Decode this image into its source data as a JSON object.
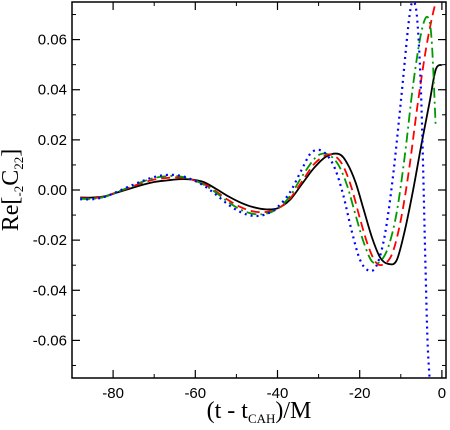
{
  "chart_data": {
    "type": "line",
    "title": "",
    "xlabel": {
      "main": "(t - t",
      "sub": "CAH",
      "tail": ")/M"
    },
    "ylabel": {
      "pre": "Re[",
      "sub": "-2",
      "mid": "C",
      "sub2": "22",
      "tail": "]"
    },
    "xlim": [
      -90,
      1
    ],
    "ylim": [
      -0.075,
      0.075
    ],
    "xticks": [
      -80,
      -60,
      -40,
      -20,
      0
    ],
    "xtick_labels": [
      "-80",
      "-60",
      "-40",
      "-20",
      "0"
    ],
    "yticks": [
      -0.06,
      -0.04,
      -0.02,
      0.0,
      0.02,
      0.04,
      0.06
    ],
    "ytick_labels": [
      "-0.06",
      "-0.04",
      "-0.02",
      "0.00",
      "0.02",
      "0.04",
      "0.06"
    ],
    "grid": false,
    "series": [
      {
        "style": "solid",
        "color": "#000000",
        "x": [
          -88,
          -85,
          -82,
          -79,
          -76,
          -73,
          -70,
          -67,
          -64,
          -61,
          -58,
          -55,
          -52,
          -49,
          -46,
          -43,
          -40,
          -37,
          -34,
          -31,
          -28,
          -25,
          -23,
          -21,
          -19,
          -17,
          -15,
          -13,
          -11,
          -9,
          -7,
          -5,
          -3,
          -1.5,
          0
        ],
        "y": [
          -0.003,
          -0.003,
          -0.0025,
          -0.001,
          0.0005,
          0.002,
          0.0032,
          0.0038,
          0.0043,
          0.0042,
          0.0032,
          0.0005,
          -0.0025,
          -0.005,
          -0.0068,
          -0.0077,
          -0.0073,
          -0.004,
          0.0025,
          0.009,
          0.0135,
          0.0143,
          0.0105,
          0.003,
          -0.008,
          -0.019,
          -0.027,
          -0.0295,
          -0.028,
          -0.016,
          0.0,
          0.018,
          0.035,
          0.048,
          0.05
        ]
      },
      {
        "style": "dash",
        "color": "#ff0000",
        "x": [
          -88,
          -85,
          -82,
          -79,
          -76,
          -73,
          -70,
          -67,
          -64,
          -61,
          -58,
          -55,
          -52,
          -49,
          -46,
          -43,
          -40,
          -37,
          -34,
          -31,
          -28,
          -26,
          -24,
          -22,
          -20,
          -18,
          -16,
          -14,
          -12,
          -10,
          -8,
          -6,
          -4,
          -2.5,
          -1.5
        ],
        "y": [
          -0.0033,
          -0.0033,
          -0.0025,
          -0.0008,
          0.001,
          0.0028,
          0.0042,
          0.0048,
          0.005,
          0.0042,
          0.0025,
          -0.0005,
          -0.004,
          -0.0068,
          -0.0085,
          -0.0088,
          -0.0075,
          -0.0035,
          0.0035,
          0.0105,
          0.014,
          0.0135,
          0.0095,
          0.001,
          -0.011,
          -0.022,
          -0.029,
          -0.0295,
          -0.025,
          -0.012,
          0.008,
          0.033,
          0.055,
          0.068,
          0.075
        ]
      },
      {
        "style": "dashdot",
        "color": "#009900",
        "x": [
          -88,
          -85,
          -82,
          -79,
          -76,
          -73,
          -70,
          -67,
          -64,
          -61,
          -58,
          -55,
          -52,
          -49,
          -46,
          -43,
          -40,
          -37,
          -34,
          -31,
          -29,
          -27,
          -25,
          -23,
          -21,
          -19,
          -17,
          -15,
          -13,
          -11,
          -9,
          -7,
          -5,
          -3.5,
          -2.5,
          -1.5
        ],
        "y": [
          -0.0035,
          -0.0035,
          -0.0027,
          -0.0008,
          0.0012,
          0.0032,
          0.0048,
          0.0055,
          0.0055,
          0.0043,
          0.0022,
          -0.001,
          -0.0048,
          -0.0078,
          -0.0095,
          -0.0095,
          -0.0075,
          -0.0025,
          0.0055,
          0.0125,
          0.0145,
          0.0135,
          0.0095,
          0.0015,
          -0.01,
          -0.021,
          -0.0285,
          -0.0285,
          -0.0225,
          -0.009,
          0.014,
          0.042,
          0.063,
          0.069,
          0.06,
          0.025
        ]
      },
      {
        "style": "dot",
        "color": "#0000ff",
        "x": [
          -88,
          -85,
          -82,
          -79,
          -76,
          -73,
          -70,
          -67,
          -64,
          -61,
          -58,
          -55,
          -52,
          -49,
          -46,
          -43,
          -40,
          -37,
          -34,
          -32,
          -30,
          -28,
          -26,
          -24,
          -22,
          -20,
          -18,
          -16,
          -14,
          -12,
          -10,
          -8,
          -7,
          -6,
          -5,
          -4,
          -3.5,
          -3
        ],
        "y": [
          -0.0037,
          -0.0037,
          -0.0027,
          -0.0007,
          0.0015,
          0.0035,
          0.0052,
          0.006,
          0.0058,
          0.0043,
          0.0018,
          -0.0018,
          -0.0058,
          -0.0088,
          -0.0103,
          -0.0098,
          -0.0068,
          -0.001,
          0.0085,
          0.0145,
          0.016,
          0.014,
          0.0085,
          -0.002,
          -0.016,
          -0.0275,
          -0.032,
          -0.0305,
          -0.019,
          0.004,
          0.035,
          0.068,
          0.075,
          0.068,
          0.035,
          -0.03,
          -0.06,
          -0.075
        ]
      }
    ]
  }
}
